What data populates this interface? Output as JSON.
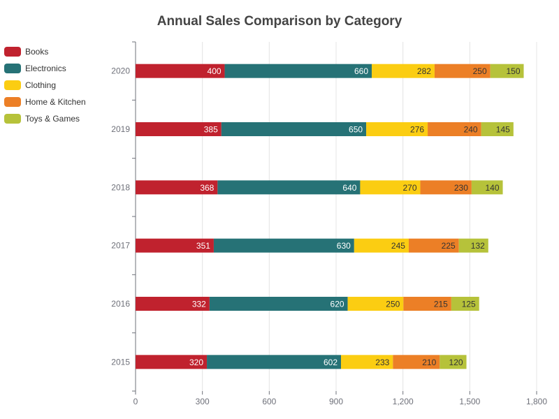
{
  "chart_data": {
    "type": "bar",
    "orientation": "horizontal",
    "stacked": true,
    "title": "Annual Sales Comparison by Category",
    "xlabel": "",
    "ylabel": "",
    "categories": [
      "2015",
      "2016",
      "2017",
      "2018",
      "2019",
      "2020"
    ],
    "xlim": [
      0,
      1800
    ],
    "x_ticks": [
      "0",
      "300",
      "600",
      "900",
      "1,200",
      "1,500",
      "1,800"
    ],
    "grid": true,
    "legend_position": "top-left",
    "series": [
      {
        "name": "Books",
        "color": "#c0222e",
        "values": [
          320,
          332,
          351,
          368,
          385,
          400
        ]
      },
      {
        "name": "Electronics",
        "color": "#267276",
        "values": [
          602,
          620,
          630,
          640,
          650,
          660
        ]
      },
      {
        "name": "Clothing",
        "color": "#fbcd12",
        "values": [
          233,
          250,
          245,
          270,
          276,
          282
        ]
      },
      {
        "name": "Home & Kitchen",
        "color": "#ec7f26",
        "values": [
          210,
          215,
          225,
          230,
          240,
          250
        ]
      },
      {
        "name": "Toys & Games",
        "color": "#b6c23a",
        "values": [
          120,
          125,
          132,
          140,
          145,
          150
        ]
      }
    ]
  }
}
